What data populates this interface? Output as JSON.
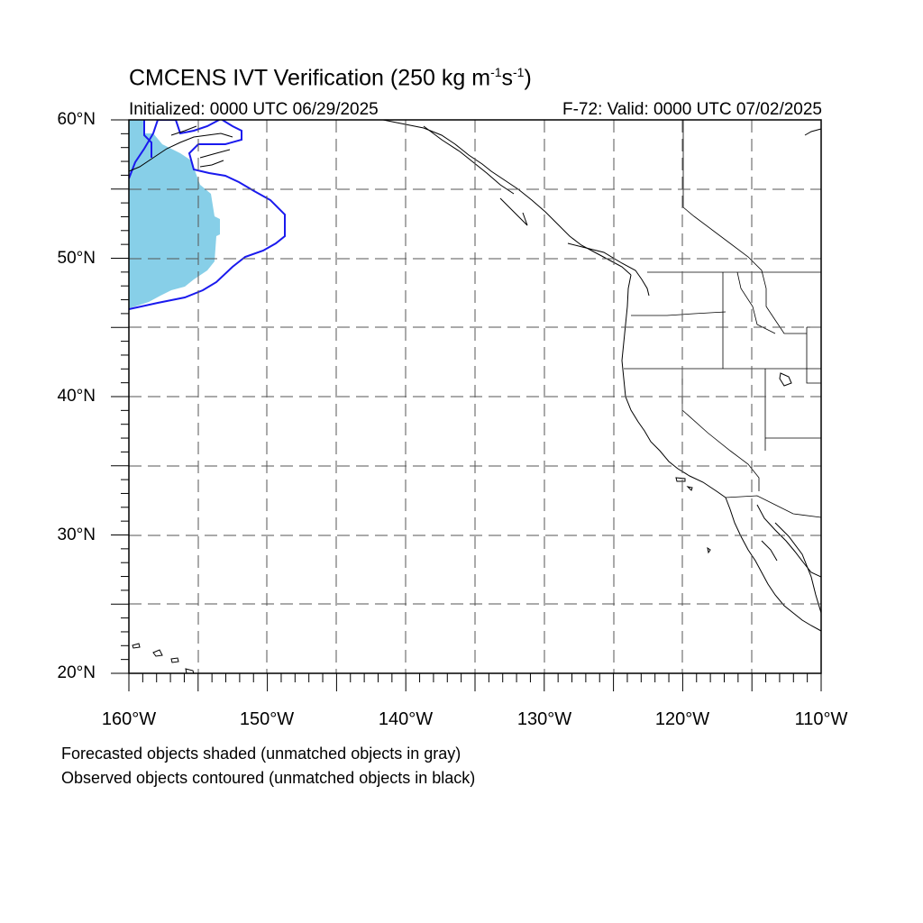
{
  "title": {
    "main": "CMCENS IVT Verification (250 kg m",
    "exp1": "-1",
    "mid": "s",
    "exp2": "-1",
    "end": ")"
  },
  "initialized": "Initialized: 0000 UTC 06/29/2025",
  "valid": "F-72: Valid: 0000 UTC 07/02/2025",
  "map": {
    "lon_range": [
      -160,
      -110
    ],
    "lat_range": [
      20,
      60
    ],
    "grid_spacing_deg": 5,
    "gridlines": "dashed",
    "lat_labels": [
      {
        "value": 60,
        "text": "60°N"
      },
      {
        "value": 50,
        "text": "50°N"
      },
      {
        "value": 40,
        "text": "40°N"
      },
      {
        "value": 30,
        "text": "30°N"
      },
      {
        "value": 20,
        "text": "20°N"
      }
    ],
    "lon_labels": [
      {
        "value": -160,
        "text": "160°W"
      },
      {
        "value": -150,
        "text": "150°W"
      },
      {
        "value": -140,
        "text": "140°W"
      },
      {
        "value": -130,
        "text": "130°W"
      },
      {
        "value": -120,
        "text": "120°W"
      },
      {
        "value": -110,
        "text": "110°W"
      }
    ],
    "forecast_color": "#87cfe8",
    "observed_color": "#1a1aee"
  },
  "legend": {
    "line1": "Forecasted objects shaded (unmatched objects in gray)",
    "line2": "Observed objects contoured (unmatched objects in black)"
  }
}
